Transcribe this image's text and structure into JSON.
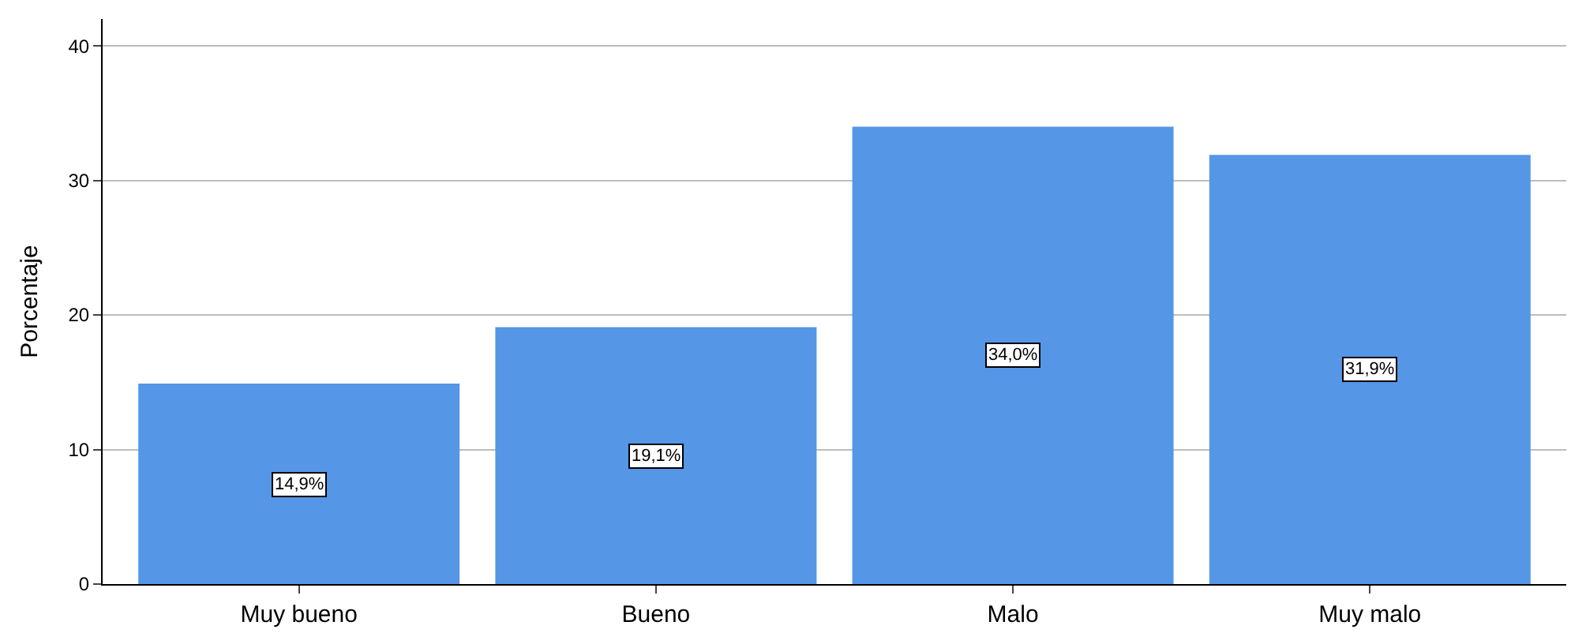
{
  "chart_data": {
    "type": "bar",
    "ylabel": "Porcentaje",
    "categories": [
      "Muy bueno",
      "Bueno",
      "Malo",
      "Muy malo"
    ],
    "values": [
      14.9,
      19.1,
      34.0,
      31.9
    ],
    "value_labels": [
      "14,9%",
      "19,1%",
      "34,0%",
      "31,9%"
    ],
    "color": "#5596e6",
    "ylim": [
      0,
      42
    ],
    "yticks": [
      0,
      10,
      20,
      30,
      40
    ],
    "grid": "y",
    "legend": false
  }
}
